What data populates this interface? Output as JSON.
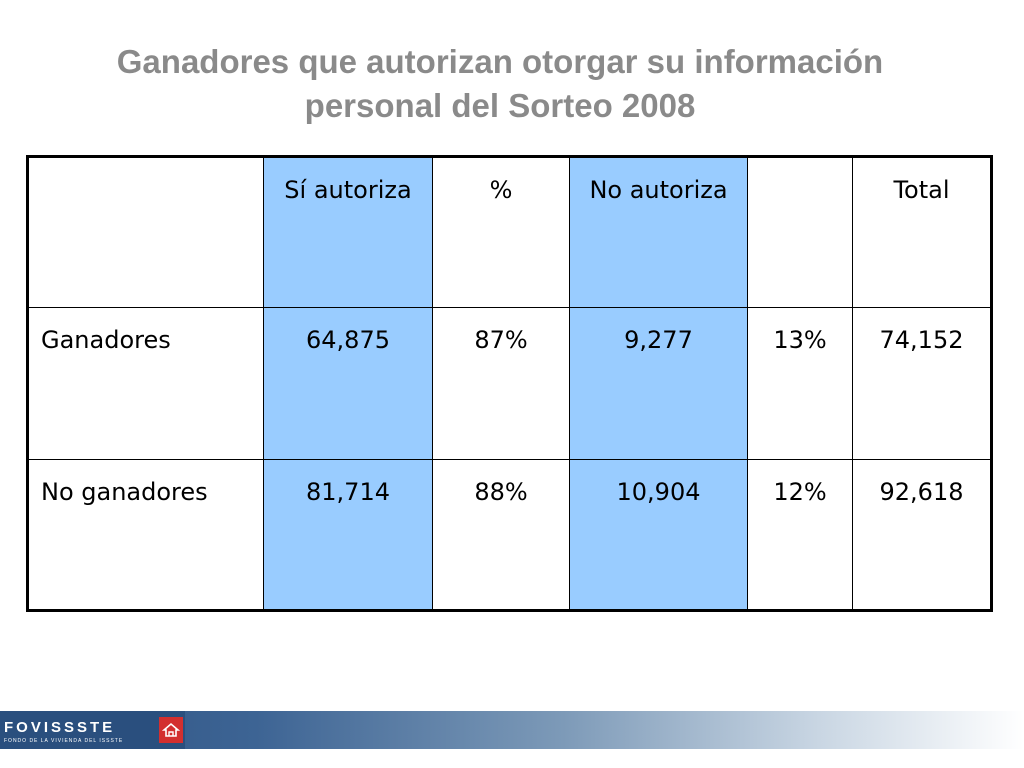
{
  "title": {
    "line1": "Ganadores que autorizan otorgar su información",
    "line2": "personal del Sorteo 2008"
  },
  "table": {
    "headers": [
      "",
      "Sí autoriza",
      "%",
      "No autoriza",
      "",
      "Total"
    ],
    "rows": [
      [
        "Ganadores",
        "64,875",
        "87%",
        "9,277",
        "13%",
        "74,152"
      ],
      [
        "No ganadores",
        "81,714",
        "88%",
        "10,904",
        "12%",
        "92,618"
      ]
    ]
  },
  "footer": {
    "logo_text": "FOVISSSTE",
    "logo_subtext": "FONDO DE LA VIVIENDA DEL ISSSTE",
    "logo_icon": "house-emblem-icon"
  },
  "colors": {
    "title": "#8a8a8a",
    "highlight_column": "#99ccff",
    "footer_dark": "#2a4f7e",
    "logo_emblem": "#d32f2f"
  }
}
